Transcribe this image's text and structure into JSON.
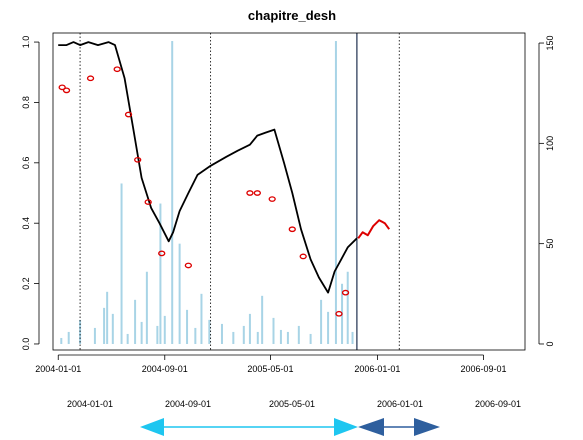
{
  "chart_data": {
    "type": "line",
    "title": "chapitre_desh",
    "xlabel": "",
    "ylabel": "",
    "x_range": [
      "2003-12-20",
      "2006-12-05"
    ],
    "ylim": [
      -0.02,
      1.03
    ],
    "y2lim": [
      -3,
      155
    ],
    "x_ticks": [
      "2004-01-01",
      "2004-09-01",
      "2005-05-01",
      "2006-01-01",
      "2006-09-01"
    ],
    "y_ticks": [
      "0.0",
      "0.2",
      "0.4",
      "0.6",
      "0.8",
      "1.0"
    ],
    "y2_ticks": [
      "0",
      "50",
      "100",
      "150"
    ],
    "lower_axis_ticks": [
      "2004-01-01",
      "2004-09-01",
      "2005-05-01",
      "2006-01-01",
      "2006-09-01"
    ],
    "grid": false,
    "vertical_lines": {
      "dotted": [
        "2004-02-20",
        "2004-12-15",
        "2006-02-20"
      ],
      "solid": [
        "2005-11-15"
      ]
    },
    "series": [
      {
        "kind": "line",
        "color": "#000000",
        "axis": "left",
        "points": [
          [
            "2004-01-01",
            0.99
          ],
          [
            "2004-01-20",
            0.99
          ],
          [
            "2004-02-05",
            1.0
          ],
          [
            "2004-02-20",
            0.99
          ],
          [
            "2004-03-10",
            1.0
          ],
          [
            "2004-04-01",
            0.99
          ],
          [
            "2004-04-25",
            1.0
          ],
          [
            "2004-05-10",
            0.99
          ],
          [
            "2004-06-01",
            0.88
          ],
          [
            "2004-06-20",
            0.72
          ],
          [
            "2004-07-10",
            0.55
          ],
          [
            "2004-08-01",
            0.45
          ],
          [
            "2004-08-20",
            0.4
          ],
          [
            "2004-09-10",
            0.34
          ],
          [
            "2004-09-20",
            0.37
          ],
          [
            "2004-10-05",
            0.44
          ],
          [
            "2004-10-25",
            0.5
          ],
          [
            "2004-11-15",
            0.56
          ],
          [
            "2004-12-15",
            0.59
          ],
          [
            "2005-01-20",
            0.62
          ],
          [
            "2005-02-15",
            0.64
          ],
          [
            "2005-03-15",
            0.66
          ],
          [
            "2005-04-01",
            0.69
          ],
          [
            "2005-04-20",
            0.7
          ],
          [
            "2005-05-10",
            0.71
          ],
          [
            "2005-06-01",
            0.6
          ],
          [
            "2005-06-20",
            0.5
          ],
          [
            "2005-07-10",
            0.38
          ],
          [
            "2005-08-01",
            0.28
          ],
          [
            "2005-08-20",
            0.22
          ],
          [
            "2005-09-10",
            0.17
          ],
          [
            "2005-09-25",
            0.24
          ],
          [
            "2005-10-10",
            0.28
          ],
          [
            "2005-10-25",
            0.32
          ],
          [
            "2005-11-15",
            0.35
          ]
        ]
      },
      {
        "kind": "line",
        "color": "#dd0000",
        "axis": "left",
        "points": [
          [
            "2005-11-18",
            0.35
          ],
          [
            "2005-11-28",
            0.37
          ],
          [
            "2005-12-10",
            0.36
          ],
          [
            "2005-12-22",
            0.39
          ],
          [
            "2006-01-05",
            0.41
          ],
          [
            "2006-01-18",
            0.4
          ],
          [
            "2006-01-28",
            0.38
          ]
        ]
      },
      {
        "kind": "scatter",
        "color": "#dd0000",
        "marker": "open-circle",
        "axis": "left",
        "points": [
          [
            "2004-01-10",
            0.85
          ],
          [
            "2004-01-20",
            0.84
          ],
          [
            "2004-03-15",
            0.88
          ],
          [
            "2004-05-15",
            0.91
          ],
          [
            "2004-06-10",
            0.76
          ],
          [
            "2004-07-01",
            0.61
          ],
          [
            "2004-07-25",
            0.47
          ],
          [
            "2004-08-25",
            0.3
          ],
          [
            "2004-10-25",
            0.26
          ],
          [
            "2005-03-15",
            0.5
          ],
          [
            "2005-04-01",
            0.5
          ],
          [
            "2005-05-05",
            0.48
          ],
          [
            "2005-06-20",
            0.38
          ],
          [
            "2005-07-15",
            0.29
          ],
          [
            "2005-10-05",
            0.1
          ],
          [
            "2005-10-20",
            0.17
          ]
        ]
      },
      {
        "kind": "bar",
        "color": "#a8d4e6",
        "axis": "right",
        "points": [
          [
            "2004-01-08",
            3
          ],
          [
            "2004-01-25",
            6
          ],
          [
            "2004-02-20",
            12
          ],
          [
            "2004-03-25",
            8
          ],
          [
            "2004-04-15",
            18
          ],
          [
            "2004-04-22",
            26
          ],
          [
            "2004-05-05",
            15
          ],
          [
            "2004-05-25",
            80
          ],
          [
            "2004-06-08",
            5
          ],
          [
            "2004-06-25",
            22
          ],
          [
            "2004-07-10",
            11
          ],
          [
            "2004-07-22",
            36
          ],
          [
            "2004-08-15",
            9
          ],
          [
            "2004-08-22",
            70
          ],
          [
            "2004-09-01",
            14
          ],
          [
            "2004-09-18",
            151
          ],
          [
            "2004-10-05",
            50
          ],
          [
            "2004-10-22",
            17
          ],
          [
            "2004-11-10",
            8
          ],
          [
            "2004-11-24",
            25
          ],
          [
            "2004-12-12",
            12
          ],
          [
            "2005-01-10",
            10
          ],
          [
            "2005-02-05",
            6
          ],
          [
            "2005-03-01",
            9
          ],
          [
            "2005-03-15",
            15
          ],
          [
            "2005-04-02",
            6
          ],
          [
            "2005-04-12",
            24
          ],
          [
            "2005-05-08",
            13
          ],
          [
            "2005-05-25",
            7
          ],
          [
            "2005-06-10",
            6
          ],
          [
            "2005-07-05",
            9
          ],
          [
            "2005-08-01",
            5
          ],
          [
            "2005-08-25",
            22
          ],
          [
            "2005-09-10",
            16
          ],
          [
            "2005-09-28",
            151
          ],
          [
            "2005-10-12",
            30
          ],
          [
            "2005-10-25",
            36
          ],
          [
            "2005-11-05",
            6
          ]
        ]
      }
    ]
  },
  "annotations": {
    "arrows": [
      {
        "from": "2004-04-10",
        "to": "2005-11-25",
        "color": "#1ec6f0"
      },
      {
        "from": "2005-11-25",
        "to": "2006-03-05",
        "color": "#2e5f9e"
      }
    ]
  }
}
